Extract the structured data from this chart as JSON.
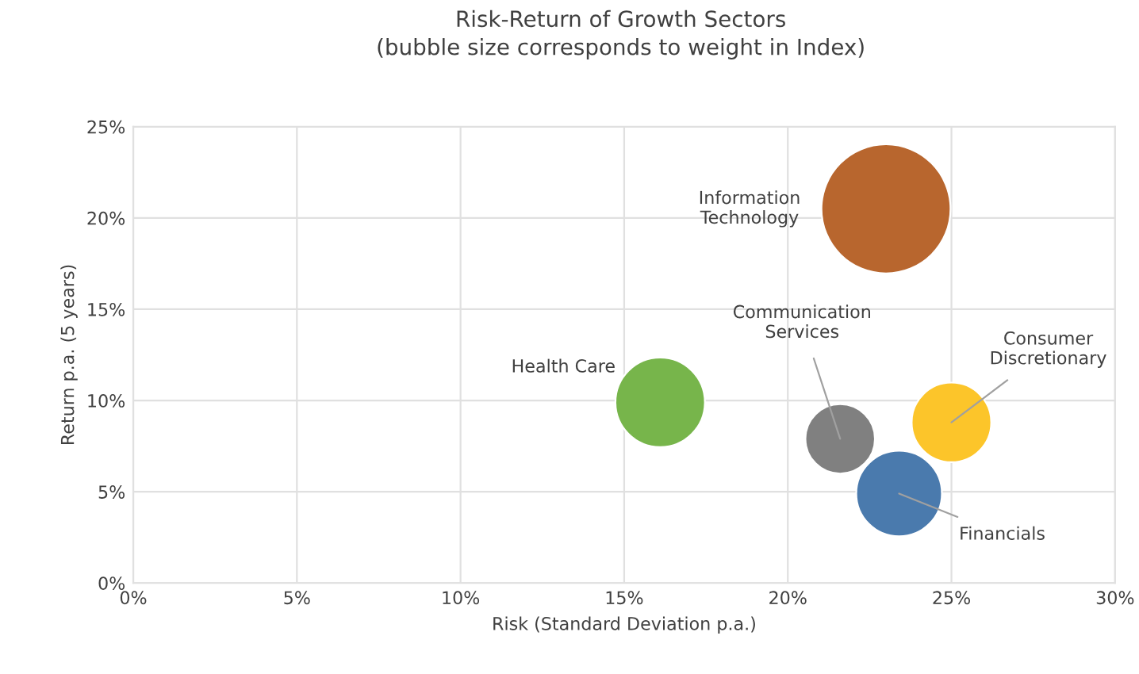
{
  "chart_data": {
    "type": "bubble",
    "title": "Risk-Return of Growth Sectors",
    "subtitle": "(bubble size corresponds to weight in Index)",
    "xlabel": "Risk (Standard Deviation p.a.)",
    "ylabel": "Return p.a. (5 years)",
    "series": [
      {
        "name": "Information Technology",
        "color": "#b8662e",
        "x": [
          23.0
        ],
        "values": [
          20.5
        ],
        "sizes": [
          1
        ]
      },
      {
        "name": "Health Care",
        "color": "#77b54b",
        "x": [
          16.1
        ],
        "values": [
          9.9
        ],
        "sizes": [
          0.48
        ]
      },
      {
        "name": "Communication Services",
        "color": "#808080",
        "x": [
          21.6
        ],
        "values": [
          7.9
        ],
        "sizes": [
          0.29
        ]
      },
      {
        "name": "Consumer Discretionary",
        "color": "#fcc52a",
        "x": [
          25.0
        ],
        "values": [
          8.8
        ],
        "sizes": [
          0.38
        ]
      },
      {
        "name": "Financials",
        "color": "#4a7aad",
        "x": [
          23.4
        ],
        "values": [
          4.9
        ],
        "sizes": [
          0.44
        ]
      }
    ],
    "xlim": [
      0,
      30
    ],
    "ylim": [
      0,
      25
    ],
    "xticks": [
      {
        "value": 0,
        "label": "0%"
      },
      {
        "value": 5,
        "label": "5%"
      },
      {
        "value": 10,
        "label": "10%"
      },
      {
        "value": 15,
        "label": "15%"
      },
      {
        "value": 20,
        "label": "20%"
      },
      {
        "value": 25,
        "label": "25%"
      },
      {
        "value": 30,
        "label": "30%"
      }
    ],
    "yticks": [
      {
        "value": 0,
        "label": "0%"
      },
      {
        "value": 5,
        "label": "5%"
      },
      {
        "value": 10,
        "label": "10%"
      },
      {
        "value": 15,
        "label": "15%"
      },
      {
        "value": 20,
        "label": "20%"
      },
      {
        "value": 25,
        "label": "25%"
      }
    ],
    "grid": true,
    "legend": false
  }
}
